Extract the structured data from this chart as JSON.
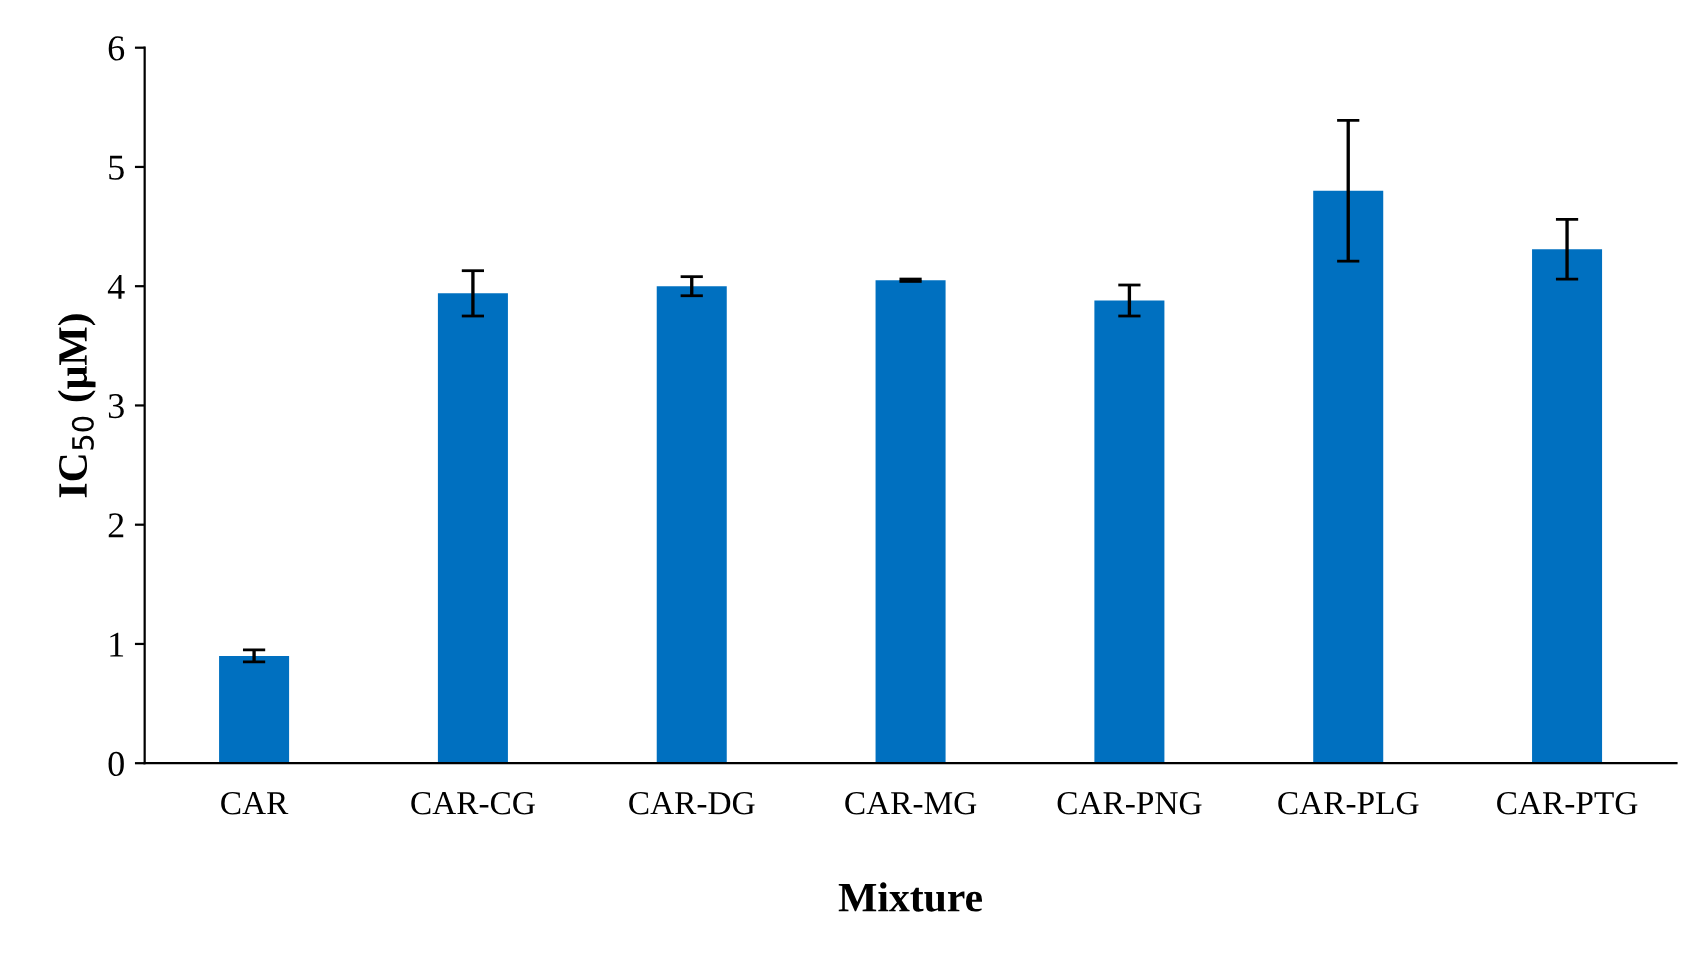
{
  "chart_data": {
    "type": "bar",
    "xlabel": "Mixture",
    "ylabel": "IC$_{50}$ (μM)",
    "categories": [
      "CAR",
      "CAR-CG",
      "CAR-DG",
      "CAR-MG",
      "CAR-PNG",
      "CAR-PLG",
      "CAR-PTG"
    ],
    "values": [
      0.9,
      3.94,
      4.0,
      4.05,
      3.88,
      4.8,
      4.31
    ],
    "errors": [
      0.05,
      0.19,
      0.08,
      0.01,
      0.13,
      0.59,
      0.25
    ],
    "color": "#0070c0",
    "ylim": [
      0,
      6
    ],
    "yticks": [
      0,
      1,
      2,
      3,
      4,
      5,
      6
    ],
    "grid": false,
    "legend": false
  }
}
